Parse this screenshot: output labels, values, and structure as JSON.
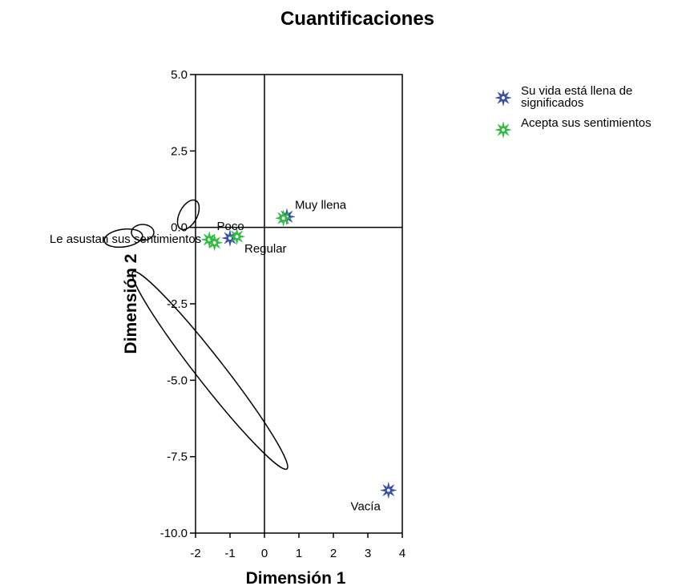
{
  "chart_data": {
    "type": "scatter",
    "title": "Cuantificaciones",
    "xlabel": "Dimensión 1",
    "ylabel": "Dimensión 2",
    "xlim": [
      -2,
      4
    ],
    "ylim": [
      -10.0,
      5.0
    ],
    "xticks": [
      "-2",
      "-1",
      "0",
      "1",
      "2",
      "3",
      "4"
    ],
    "yticks": [
      "5.0",
      "2.5",
      "0.0",
      "-2.5",
      "-5.0",
      "-7.5",
      "-10.0"
    ],
    "series": [
      {
        "name": "Su vida está llena de significados",
        "color": "#3a4fa8",
        "points": [
          {
            "label": "Muy llena",
            "x": 0.65,
            "y": 0.35
          },
          {
            "label": "Regular",
            "x": -1.0,
            "y": -0.35
          },
          {
            "label": "Vacía",
            "x": 3.6,
            "y": -8.6
          }
        ]
      },
      {
        "name": "Acepta sus sentimientos",
        "color": "#33bb44",
        "points": [
          {
            "label": "",
            "x": 0.55,
            "y": 0.3
          },
          {
            "label": "Le asustan sus sentimientos",
            "x": -1.6,
            "y": -0.4
          },
          {
            "label": "Poco",
            "x": -0.8,
            "y": -0.3
          },
          {
            "label": "",
            "x": -1.45,
            "y": -0.5
          }
        ]
      }
    ],
    "legend_position": "top-right",
    "grid": false
  }
}
